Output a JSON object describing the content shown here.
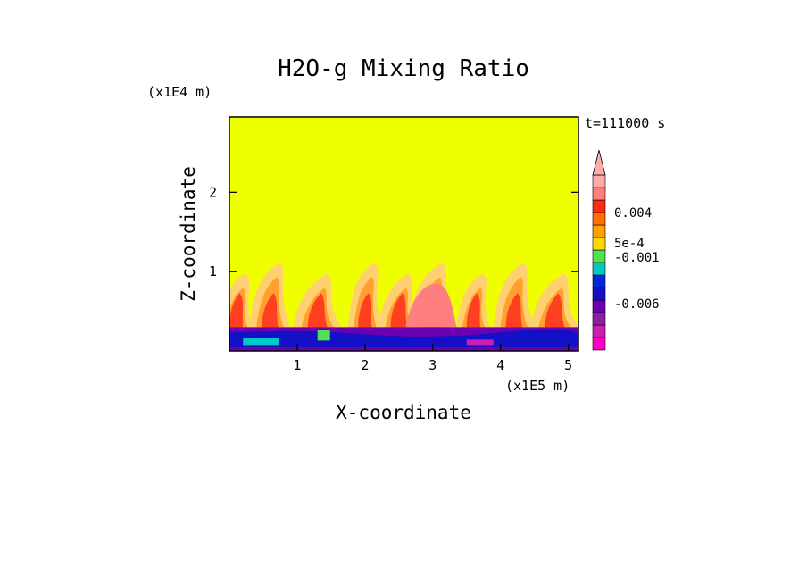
{
  "chart_data": {
    "type": "heatmap",
    "title": "H2O-g Mixing Ratio",
    "xlabel": "X-coordinate",
    "ylabel": "Z-coordinate",
    "x_unit": "(x1E5 m)",
    "y_unit": "(x1E4 m)",
    "time_label": "t=111000 s",
    "xlim": [
      0,
      5.15
    ],
    "ylim": [
      0,
      2.95
    ],
    "x_ticks": [
      "1",
      "2",
      "3",
      "4",
      "5"
    ],
    "x_tick_values": [
      1,
      2,
      3,
      4,
      5
    ],
    "y_ticks": [
      "1",
      "2"
    ],
    "y_tick_values": [
      1,
      2
    ],
    "background_value": "lowest positive level (yellow)",
    "colorbar": {
      "levels": [
        "0.004",
        "5e-4",
        "-0.001",
        "-0.006"
      ],
      "colors": [
        "#ff00c8",
        "#cc1fb0",
        "#8c1fa0",
        "#6a00b0",
        "#1410c8",
        "#0028d8",
        "#00c8c8",
        "#50e050",
        "#ffd800",
        "#ffa000",
        "#ff7000",
        "#ff2a10",
        "#ff7f7f",
        "#ffaaaa"
      ]
    },
    "plumes_x": [
      0.1,
      0.6,
      1.3,
      2.0,
      2.5,
      3.0,
      3.6,
      4.2,
      4.8
    ],
    "boundary_layer_top": 0.3
  }
}
